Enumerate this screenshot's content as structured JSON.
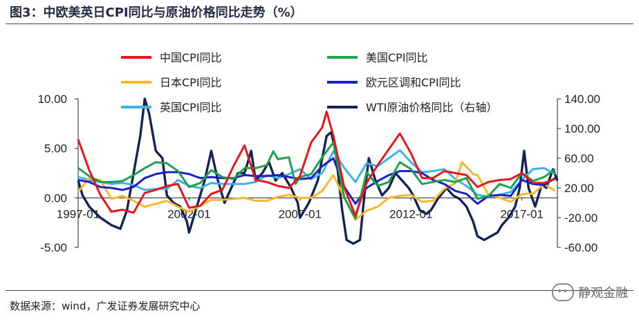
{
  "title": "图3：中欧美英日CPI同比与原油价格同比走势（%）",
  "source": "数据来源：wind，广发证券发展研究中心",
  "watermark": "静观金融",
  "chart_data": {
    "type": "line",
    "x_ticks": [
      "1997-01",
      "2002-01",
      "2007-01",
      "2012-01",
      "2017-01"
    ],
    "x_range": [
      "1997-01",
      "2018-06"
    ],
    "left_axis": {
      "ticks": [
        "10.00",
        "5.00",
        "0.00",
        "-5.00"
      ],
      "range": [
        -5,
        10
      ]
    },
    "right_axis": {
      "ticks": [
        "140.00",
        "100.00",
        "60.00",
        "20.00",
        "-20.00",
        "-60.00"
      ],
      "range": [
        -60,
        140
      ]
    },
    "legend_position": "top",
    "series": [
      {
        "name": "中国CPI同比",
        "axis": "left",
        "color": "#e8151b",
        "points": [
          [
            1997.0,
            5.9
          ],
          [
            1997.5,
            2.8
          ],
          [
            1998.0,
            0.3
          ],
          [
            1998.5,
            -1.4
          ],
          [
            1999.0,
            -1.2
          ],
          [
            1999.5,
            -1.5
          ],
          [
            2000.0,
            0.5
          ],
          [
            2000.5,
            0.8
          ],
          [
            2001.0,
            1.2
          ],
          [
            2001.5,
            1.4
          ],
          [
            2002.0,
            -1.0
          ],
          [
            2002.5,
            -0.8
          ],
          [
            2003.0,
            0.4
          ],
          [
            2003.5,
            0.8
          ],
          [
            2004.0,
            3.2
          ],
          [
            2004.5,
            5.3
          ],
          [
            2005.0,
            1.8
          ],
          [
            2005.5,
            1.6
          ],
          [
            2006.0,
            1.2
          ],
          [
            2006.5,
            1.0
          ],
          [
            2007.0,
            2.2
          ],
          [
            2007.5,
            5.6
          ],
          [
            2008.0,
            7.1
          ],
          [
            2008.2,
            8.7
          ],
          [
            2008.5,
            6.3
          ],
          [
            2009.0,
            1.0
          ],
          [
            2009.5,
            -1.8
          ],
          [
            2010.0,
            1.5
          ],
          [
            2010.5,
            3.3
          ],
          [
            2011.0,
            4.9
          ],
          [
            2011.5,
            6.5
          ],
          [
            2012.0,
            4.5
          ],
          [
            2012.5,
            2.0
          ],
          [
            2013.0,
            2.0
          ],
          [
            2013.5,
            2.7
          ],
          [
            2014.0,
            2.5
          ],
          [
            2014.5,
            2.3
          ],
          [
            2015.0,
            1.1
          ],
          [
            2015.5,
            1.6
          ],
          [
            2016.0,
            1.8
          ],
          [
            2016.5,
            1.9
          ],
          [
            2017.0,
            2.5
          ],
          [
            2017.5,
            1.5
          ],
          [
            2018.0,
            1.5
          ],
          [
            2018.5,
            1.9
          ]
        ]
      },
      {
        "name": "美国CPI同比",
        "axis": "left",
        "color": "#1fa04b",
        "points": [
          [
            1997.0,
            3.0
          ],
          [
            1997.5,
            2.2
          ],
          [
            1998.0,
            1.6
          ],
          [
            1998.5,
            1.6
          ],
          [
            1999.0,
            1.7
          ],
          [
            1999.5,
            2.3
          ],
          [
            2000.0,
            3.0
          ],
          [
            2000.5,
            3.6
          ],
          [
            2001.0,
            3.5
          ],
          [
            2001.5,
            2.7
          ],
          [
            2002.0,
            1.1
          ],
          [
            2002.5,
            1.5
          ],
          [
            2003.0,
            2.8
          ],
          [
            2003.5,
            2.1
          ],
          [
            2004.0,
            1.9
          ],
          [
            2004.5,
            3.0
          ],
          [
            2005.0,
            3.0
          ],
          [
            2005.5,
            3.3
          ],
          [
            2005.8,
            4.7
          ],
          [
            2006.0,
            3.9
          ],
          [
            2006.5,
            4.1
          ],
          [
            2006.8,
            1.4
          ],
          [
            2007.0,
            2.1
          ],
          [
            2007.5,
            2.4
          ],
          [
            2008.0,
            4.1
          ],
          [
            2008.5,
            5.6
          ],
          [
            2009.0,
            0.0
          ],
          [
            2009.5,
            -2.1
          ],
          [
            2010.0,
            2.6
          ],
          [
            2010.5,
            1.2
          ],
          [
            2011.0,
            1.6
          ],
          [
            2011.5,
            3.6
          ],
          [
            2012.0,
            2.9
          ],
          [
            2012.5,
            1.4
          ],
          [
            2013.0,
            1.6
          ],
          [
            2013.5,
            1.8
          ],
          [
            2014.0,
            1.6
          ],
          [
            2014.5,
            2.0
          ],
          [
            2015.0,
            -0.1
          ],
          [
            2015.5,
            0.2
          ],
          [
            2016.0,
            1.4
          ],
          [
            2016.5,
            1.0
          ],
          [
            2017.0,
            2.5
          ],
          [
            2017.5,
            1.7
          ],
          [
            2018.0,
            2.1
          ],
          [
            2018.5,
            2.9
          ]
        ]
      },
      {
        "name": "日本CPI同比",
        "axis": "left",
        "color": "#f7b928",
        "points": [
          [
            1997.0,
            0.6
          ],
          [
            1997.5,
            2.0
          ],
          [
            1998.0,
            1.8
          ],
          [
            1998.5,
            -0.1
          ],
          [
            1999.0,
            0.2
          ],
          [
            1999.5,
            -0.3
          ],
          [
            2000.0,
            -0.9
          ],
          [
            2000.5,
            -0.6
          ],
          [
            2001.0,
            -0.3
          ],
          [
            2001.5,
            -0.9
          ],
          [
            2002.0,
            -1.4
          ],
          [
            2002.5,
            -0.8
          ],
          [
            2003.0,
            -0.2
          ],
          [
            2003.5,
            -0.2
          ],
          [
            2004.0,
            -0.1
          ],
          [
            2004.5,
            0.0
          ],
          [
            2005.0,
            -0.3
          ],
          [
            2005.5,
            -0.3
          ],
          [
            2006.0,
            0.1
          ],
          [
            2006.5,
            0.3
          ],
          [
            2007.0,
            0.0
          ],
          [
            2007.5,
            0.0
          ],
          [
            2008.0,
            0.7
          ],
          [
            2008.5,
            2.3
          ],
          [
            2009.0,
            0.0
          ],
          [
            2009.5,
            -2.2
          ],
          [
            2010.0,
            -1.3
          ],
          [
            2010.5,
            -0.9
          ],
          [
            2011.0,
            0.0
          ],
          [
            2011.5,
            0.2
          ],
          [
            2012.0,
            0.3
          ],
          [
            2012.5,
            -0.4
          ],
          [
            2013.0,
            -0.3
          ],
          [
            2013.5,
            0.9
          ],
          [
            2014.0,
            1.5
          ],
          [
            2014.3,
            3.6
          ],
          [
            2014.8,
            2.4
          ],
          [
            2015.0,
            2.3
          ],
          [
            2015.5,
            0.3
          ],
          [
            2016.0,
            0.0
          ],
          [
            2016.5,
            -0.4
          ],
          [
            2017.0,
            0.4
          ],
          [
            2017.5,
            0.4
          ],
          [
            2018.0,
            1.4
          ],
          [
            2018.5,
            0.7
          ]
        ]
      },
      {
        "name": "欧元区调和CPI同比",
        "axis": "left",
        "color": "#1d1fc4",
        "points": [
          [
            1997.0,
            1.8
          ],
          [
            1997.5,
            1.6
          ],
          [
            1998.0,
            1.1
          ],
          [
            1998.5,
            1.0
          ],
          [
            1999.0,
            0.8
          ],
          [
            1999.5,
            1.1
          ],
          [
            2000.0,
            2.0
          ],
          [
            2000.5,
            2.4
          ],
          [
            2001.0,
            2.6
          ],
          [
            2001.5,
            2.6
          ],
          [
            2002.0,
            2.4
          ],
          [
            2002.5,
            2.0
          ],
          [
            2003.0,
            2.1
          ],
          [
            2003.5,
            2.0
          ],
          [
            2004.0,
            2.0
          ],
          [
            2004.5,
            2.3
          ],
          [
            2005.0,
            2.2
          ],
          [
            2005.5,
            2.2
          ],
          [
            2006.0,
            2.3
          ],
          [
            2006.5,
            2.1
          ],
          [
            2007.0,
            1.9
          ],
          [
            2007.5,
            2.0
          ],
          [
            2008.0,
            3.2
          ],
          [
            2008.5,
            4.0
          ],
          [
            2009.0,
            1.1
          ],
          [
            2009.5,
            -0.6
          ],
          [
            2010.0,
            1.0
          ],
          [
            2010.5,
            1.7
          ],
          [
            2011.0,
            2.3
          ],
          [
            2011.5,
            2.7
          ],
          [
            2012.0,
            2.7
          ],
          [
            2012.5,
            2.5
          ],
          [
            2013.0,
            1.8
          ],
          [
            2013.5,
            1.4
          ],
          [
            2014.0,
            0.7
          ],
          [
            2014.5,
            0.4
          ],
          [
            2015.0,
            -0.6
          ],
          [
            2015.5,
            0.2
          ],
          [
            2016.0,
            0.3
          ],
          [
            2016.5,
            0.2
          ],
          [
            2017.0,
            1.8
          ],
          [
            2017.5,
            1.4
          ],
          [
            2018.0,
            1.3
          ],
          [
            2018.5,
            2.0
          ]
        ]
      },
      {
        "name": "英国CPI同比",
        "axis": "left",
        "color": "#3fb2e6",
        "points": [
          [
            1997.0,
            2.1
          ],
          [
            1997.5,
            1.8
          ],
          [
            1998.0,
            1.6
          ],
          [
            1998.5,
            1.4
          ],
          [
            1999.0,
            1.5
          ],
          [
            1999.5,
            1.3
          ],
          [
            2000.0,
            0.8
          ],
          [
            2000.5,
            0.9
          ],
          [
            2001.0,
            0.9
          ],
          [
            2001.5,
            1.8
          ],
          [
            2002.0,
            1.2
          ],
          [
            2002.5,
            1.0
          ],
          [
            2003.0,
            1.5
          ],
          [
            2003.5,
            1.4
          ],
          [
            2004.0,
            1.4
          ],
          [
            2004.5,
            1.4
          ],
          [
            2005.0,
            1.6
          ],
          [
            2005.5,
            2.3
          ],
          [
            2006.0,
            2.0
          ],
          [
            2006.5,
            2.4
          ],
          [
            2007.0,
            2.9
          ],
          [
            2007.5,
            1.9
          ],
          [
            2008.0,
            2.5
          ],
          [
            2008.5,
            4.7
          ],
          [
            2009.0,
            3.0
          ],
          [
            2009.5,
            1.6
          ],
          [
            2010.0,
            3.5
          ],
          [
            2010.5,
            3.2
          ],
          [
            2011.0,
            4.0
          ],
          [
            2011.5,
            4.8
          ],
          [
            2012.0,
            3.6
          ],
          [
            2012.5,
            2.6
          ],
          [
            2013.0,
            2.7
          ],
          [
            2013.5,
            2.9
          ],
          [
            2014.0,
            1.9
          ],
          [
            2014.5,
            1.2
          ],
          [
            2015.0,
            0.3
          ],
          [
            2015.5,
            0.1
          ],
          [
            2016.0,
            0.3
          ],
          [
            2016.5,
            0.6
          ],
          [
            2017.0,
            1.8
          ],
          [
            2017.5,
            2.9
          ],
          [
            2018.0,
            3.0
          ],
          [
            2018.5,
            2.4
          ]
        ]
      },
      {
        "name": "WTI原油价格同比（右轴）",
        "axis": "right",
        "color": "#122355",
        "points": [
          [
            1997.0,
            30
          ],
          [
            1997.2,
            10
          ],
          [
            1997.5,
            -5
          ],
          [
            1998.0,
            -20
          ],
          [
            1998.5,
            -30
          ],
          [
            1998.9,
            -35
          ],
          [
            1999.2,
            -10
          ],
          [
            1999.5,
            40
          ],
          [
            1999.8,
            90
          ],
          [
            2000.0,
            140
          ],
          [
            2000.2,
            120
          ],
          [
            2000.5,
            70
          ],
          [
            2000.8,
            60
          ],
          [
            2001.0,
            10
          ],
          [
            2001.3,
            0
          ],
          [
            2001.6,
            -5
          ],
          [
            2001.9,
            -25
          ],
          [
            2002.0,
            -40
          ],
          [
            2002.3,
            -10
          ],
          [
            2002.7,
            30
          ],
          [
            2003.0,
            70
          ],
          [
            2003.3,
            30
          ],
          [
            2003.6,
            0
          ],
          [
            2003.9,
            20
          ],
          [
            2004.2,
            40
          ],
          [
            2004.5,
            40
          ],
          [
            2004.8,
            70
          ],
          [
            2005.0,
            30
          ],
          [
            2005.3,
            40
          ],
          [
            2005.6,
            55
          ],
          [
            2005.9,
            30
          ],
          [
            2006.2,
            40
          ],
          [
            2006.6,
            20
          ],
          [
            2006.9,
            0
          ],
          [
            2007.0,
            -20
          ],
          [
            2007.4,
            0
          ],
          [
            2007.8,
            30
          ],
          [
            2008.0,
            60
          ],
          [
            2008.2,
            90
          ],
          [
            2008.4,
            95
          ],
          [
            2008.6,
            70
          ],
          [
            2008.9,
            -10
          ],
          [
            2009.1,
            -50
          ],
          [
            2009.4,
            -55
          ],
          [
            2009.7,
            -50
          ],
          [
            2009.9,
            10
          ],
          [
            2010.1,
            60
          ],
          [
            2010.4,
            30
          ],
          [
            2010.7,
            10
          ],
          [
            2011.0,
            20
          ],
          [
            2011.3,
            40
          ],
          [
            2011.6,
            30
          ],
          [
            2011.9,
            20
          ],
          [
            2012.1,
            10
          ],
          [
            2012.4,
            -10
          ],
          [
            2012.7,
            -15
          ],
          [
            2012.9,
            -10
          ],
          [
            2013.2,
            5
          ],
          [
            2013.6,
            20
          ],
          [
            2013.9,
            10
          ],
          [
            2014.2,
            5
          ],
          [
            2014.5,
            -5
          ],
          [
            2014.8,
            -25
          ],
          [
            2015.0,
            -45
          ],
          [
            2015.3,
            -50
          ],
          [
            2015.6,
            -45
          ],
          [
            2015.9,
            -40
          ],
          [
            2016.1,
            -30
          ],
          [
            2016.4,
            -20
          ],
          [
            2016.7,
            -5
          ],
          [
            2016.9,
            20
          ],
          [
            2017.1,
            70
          ],
          [
            2017.3,
            20
          ],
          [
            2017.6,
            -5
          ],
          [
            2017.9,
            25
          ],
          [
            2018.1,
            20
          ],
          [
            2018.4,
            45
          ],
          [
            2018.6,
            30
          ]
        ]
      }
    ]
  }
}
